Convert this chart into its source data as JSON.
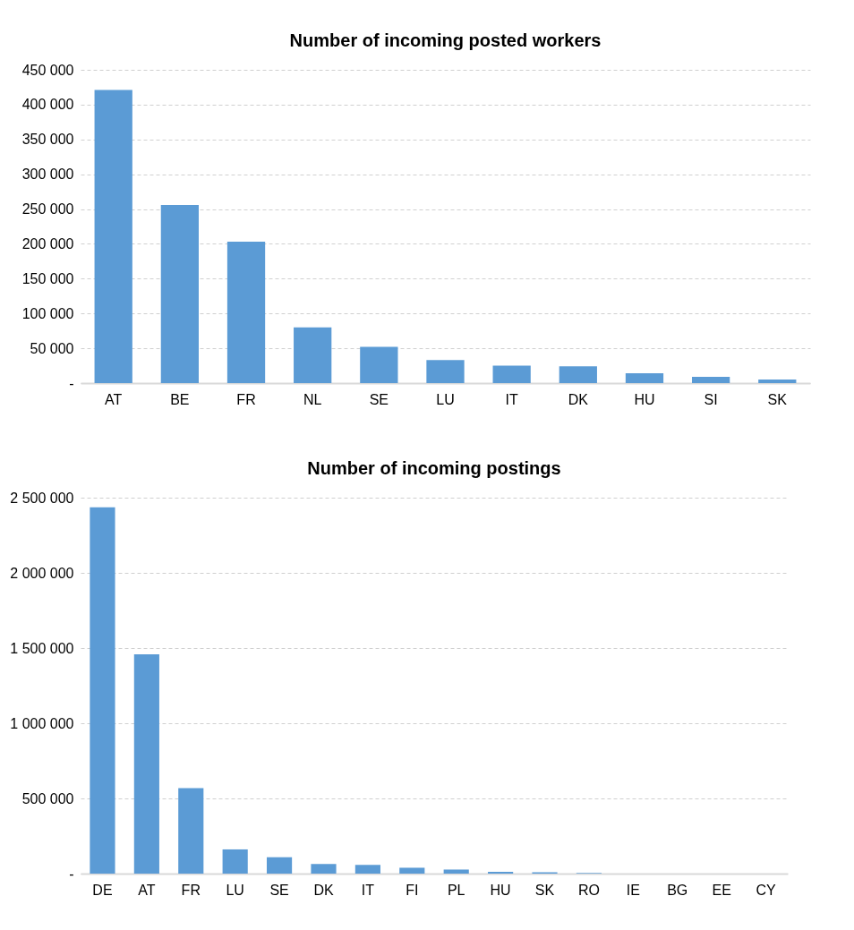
{
  "chart_data": [
    {
      "type": "bar",
      "title": "Number of incoming posted workers",
      "categories": [
        "AT",
        "BE",
        "FR",
        "NL",
        "SE",
        "LU",
        "IT",
        "DK",
        "HU",
        "SI",
        "SK"
      ],
      "values": [
        421000,
        256000,
        203000,
        80000,
        52000,
        33000,
        25000,
        24000,
        14000,
        9000,
        5000
      ],
      "color": "#5b9bd5",
      "ylim": [
        0,
        450000
      ],
      "yticks": [
        {
          "value": 0,
          "label": "-"
        },
        {
          "value": 50000,
          "label": "50 000"
        },
        {
          "value": 100000,
          "label": "100 000"
        },
        {
          "value": 150000,
          "label": "150 000"
        },
        {
          "value": 200000,
          "label": "200 000"
        },
        {
          "value": 250000,
          "label": "250 000"
        },
        {
          "value": 300000,
          "label": "300 000"
        },
        {
          "value": 350000,
          "label": "350 000"
        },
        {
          "value": 400000,
          "label": "400 000"
        },
        {
          "value": 450000,
          "label": "450 000"
        }
      ],
      "grid": "y"
    },
    {
      "type": "bar",
      "title": "Number of incoming postings",
      "categories": [
        "DE",
        "AT",
        "FR",
        "LU",
        "SE",
        "DK",
        "IT",
        "FI",
        "PL",
        "HU",
        "SK",
        "RO",
        "IE",
        "BG",
        "EE",
        "CY"
      ],
      "values": [
        2436000,
        1458000,
        568000,
        161000,
        109000,
        64000,
        58000,
        39000,
        27000,
        12000,
        9000,
        4000,
        null,
        null,
        null,
        null
      ],
      "color": "#5b9bd5",
      "ylim": [
        0,
        2500000
      ],
      "yticks": [
        {
          "value": 0,
          "label": "-"
        },
        {
          "value": 500000,
          "label": "500 000"
        },
        {
          "value": 1000000,
          "label": "1 000 000"
        },
        {
          "value": 1500000,
          "label": "1 500 000"
        },
        {
          "value": 2000000,
          "label": "2 000 000"
        },
        {
          "value": 2500000,
          "label": "2 500 000"
        }
      ],
      "grid": "y"
    }
  ]
}
